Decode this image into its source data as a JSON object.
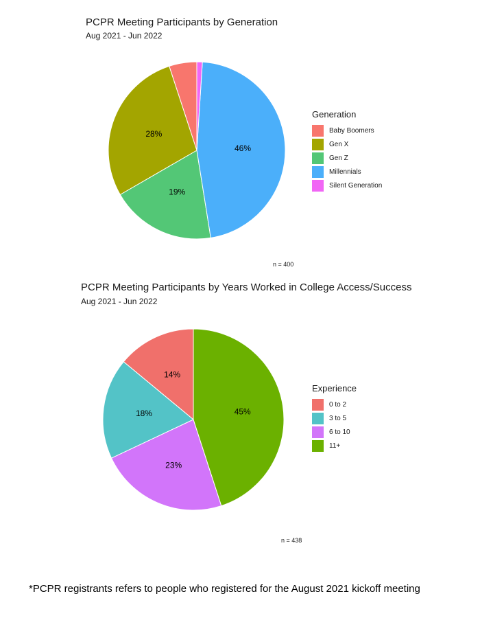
{
  "chart_data": [
    {
      "type": "pie",
      "title": "PCPR Meeting Participants by Generation",
      "subtitle": "Aug 2021 - Jun 2022",
      "legend_title": "Generation",
      "legend_position": "right",
      "caption": "n = 400",
      "categories": [
        "Baby Boomers",
        "Gen X",
        "Gen Z",
        "Millennials",
        "Silent Generation"
      ],
      "values": [
        5,
        28,
        19,
        46,
        1
      ],
      "data_labels": [
        "",
        "28%",
        "19%",
        "46%",
        ""
      ],
      "colors": [
        "#F8766D",
        "#A3A500",
        "#53C776",
        "#4BAFFA",
        "#F166F5"
      ]
    },
    {
      "type": "pie",
      "title": "PCPR Meeting Participants by Years Worked in College Access/Success",
      "subtitle": "Aug 2021 - Jun 2022",
      "legend_title": "Experience",
      "legend_position": "right",
      "caption": "n = 438",
      "categories": [
        "0 to 2",
        "3 to 5",
        "6 to 10",
        "11+"
      ],
      "values": [
        14,
        18,
        23,
        45
      ],
      "data_labels": [
        "14%",
        "18%",
        "23%",
        "45%"
      ],
      "colors": [
        "#F0706B",
        "#53C3C7",
        "#D275FA",
        "#6BB100"
      ]
    }
  ],
  "footnote": "*PCPR registrants refers to people who registered for the August 2021 kickoff meeting"
}
